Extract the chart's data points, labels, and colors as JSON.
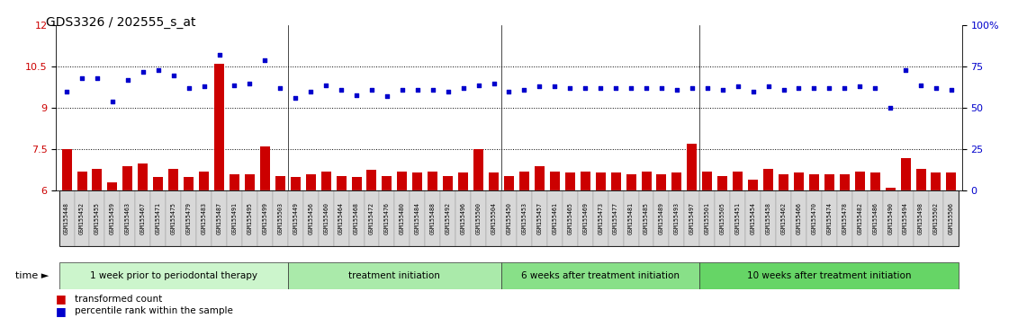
{
  "title": "GDS3326 / 202555_s_at",
  "samples": [
    "GSM155448",
    "GSM155452",
    "GSM155455",
    "GSM155459",
    "GSM155463",
    "GSM155467",
    "GSM155471",
    "GSM155475",
    "GSM155479",
    "GSM155483",
    "GSM155487",
    "GSM155491",
    "GSM155495",
    "GSM155499",
    "GSM155503",
    "GSM155449",
    "GSM155456",
    "GSM155460",
    "GSM155464",
    "GSM155468",
    "GSM155472",
    "GSM155476",
    "GSM155480",
    "GSM155484",
    "GSM155488",
    "GSM155492",
    "GSM155496",
    "GSM155500",
    "GSM155504",
    "GSM155450",
    "GSM155453",
    "GSM155457",
    "GSM155461",
    "GSM155465",
    "GSM155469",
    "GSM155473",
    "GSM155477",
    "GSM155481",
    "GSM155485",
    "GSM155489",
    "GSM155493",
    "GSM155497",
    "GSM155501",
    "GSM155505",
    "GSM155451",
    "GSM155454",
    "GSM155458",
    "GSM155462",
    "GSM155466",
    "GSM155470",
    "GSM155474",
    "GSM155478",
    "GSM155482",
    "GSM155486",
    "GSM155490",
    "GSM155494",
    "GSM155498",
    "GSM155502",
    "GSM155506"
  ],
  "bar_values": [
    7.5,
    6.7,
    6.8,
    6.3,
    6.9,
    7.0,
    6.5,
    6.8,
    6.5,
    6.7,
    10.6,
    6.6,
    6.6,
    7.6,
    6.55,
    6.5,
    6.6,
    6.7,
    6.55,
    6.5,
    6.75,
    6.55,
    6.7,
    6.65,
    6.7,
    6.55,
    6.65,
    7.5,
    6.65,
    6.55,
    6.7,
    6.9,
    6.7,
    6.65,
    6.7,
    6.65,
    6.65,
    6.6,
    6.7,
    6.6,
    6.65,
    7.7,
    6.7,
    6.55,
    6.7,
    6.4,
    6.8,
    6.6,
    6.65,
    6.6,
    6.6,
    6.6,
    6.7,
    6.65,
    6.1,
    7.2,
    6.8,
    6.65,
    6.65
  ],
  "dot_values": [
    60,
    68,
    68,
    54,
    67,
    72,
    73,
    70,
    62,
    63,
    82,
    64,
    65,
    79,
    62,
    56,
    60,
    64,
    61,
    58,
    61,
    57,
    61,
    61,
    61,
    60,
    62,
    64,
    65,
    60,
    61,
    63,
    63,
    62,
    62,
    62,
    62,
    62,
    62,
    62,
    61,
    62,
    62,
    61,
    63,
    60,
    63,
    61,
    62,
    62,
    62,
    62,
    63,
    62,
    50,
    73,
    64,
    62,
    61
  ],
  "groups": [
    {
      "label": "1 week prior to periodontal therapy",
      "start": 0,
      "end": 15,
      "color": "#ccf5cc"
    },
    {
      "label": "treatment initiation",
      "start": 15,
      "end": 29,
      "color": "#aaeaaa"
    },
    {
      "label": "6 weeks after treatment initiation",
      "start": 29,
      "end": 42,
      "color": "#88e088"
    },
    {
      "label": "10 weeks after treatment initiation",
      "start": 42,
      "end": 59,
      "color": "#66d566"
    }
  ],
  "bar_color": "#cc0000",
  "dot_color": "#0000cc",
  "bar_baseline": 6.0,
  "ylim_left": [
    6.0,
    12.0
  ],
  "ylim_right": [
    0,
    100
  ],
  "yticks_left": [
    6.0,
    7.5,
    9.0,
    10.5,
    12.0
  ],
  "yticks_right": [
    0,
    25,
    50,
    75,
    100
  ],
  "ytick_labels_left": [
    "6",
    "7.5",
    "9",
    "10.5",
    "12"
  ],
  "ytick_labels_right": [
    "0",
    "25",
    "50",
    "75",
    "100%"
  ],
  "hlines": [
    7.5,
    9.0,
    10.5
  ],
  "tick_label_color_left": "#cc0000",
  "tick_label_color_right": "#0000cc",
  "label_fontsize": 8,
  "sample_fontsize": 4.8,
  "band_fontsize": 7.5
}
